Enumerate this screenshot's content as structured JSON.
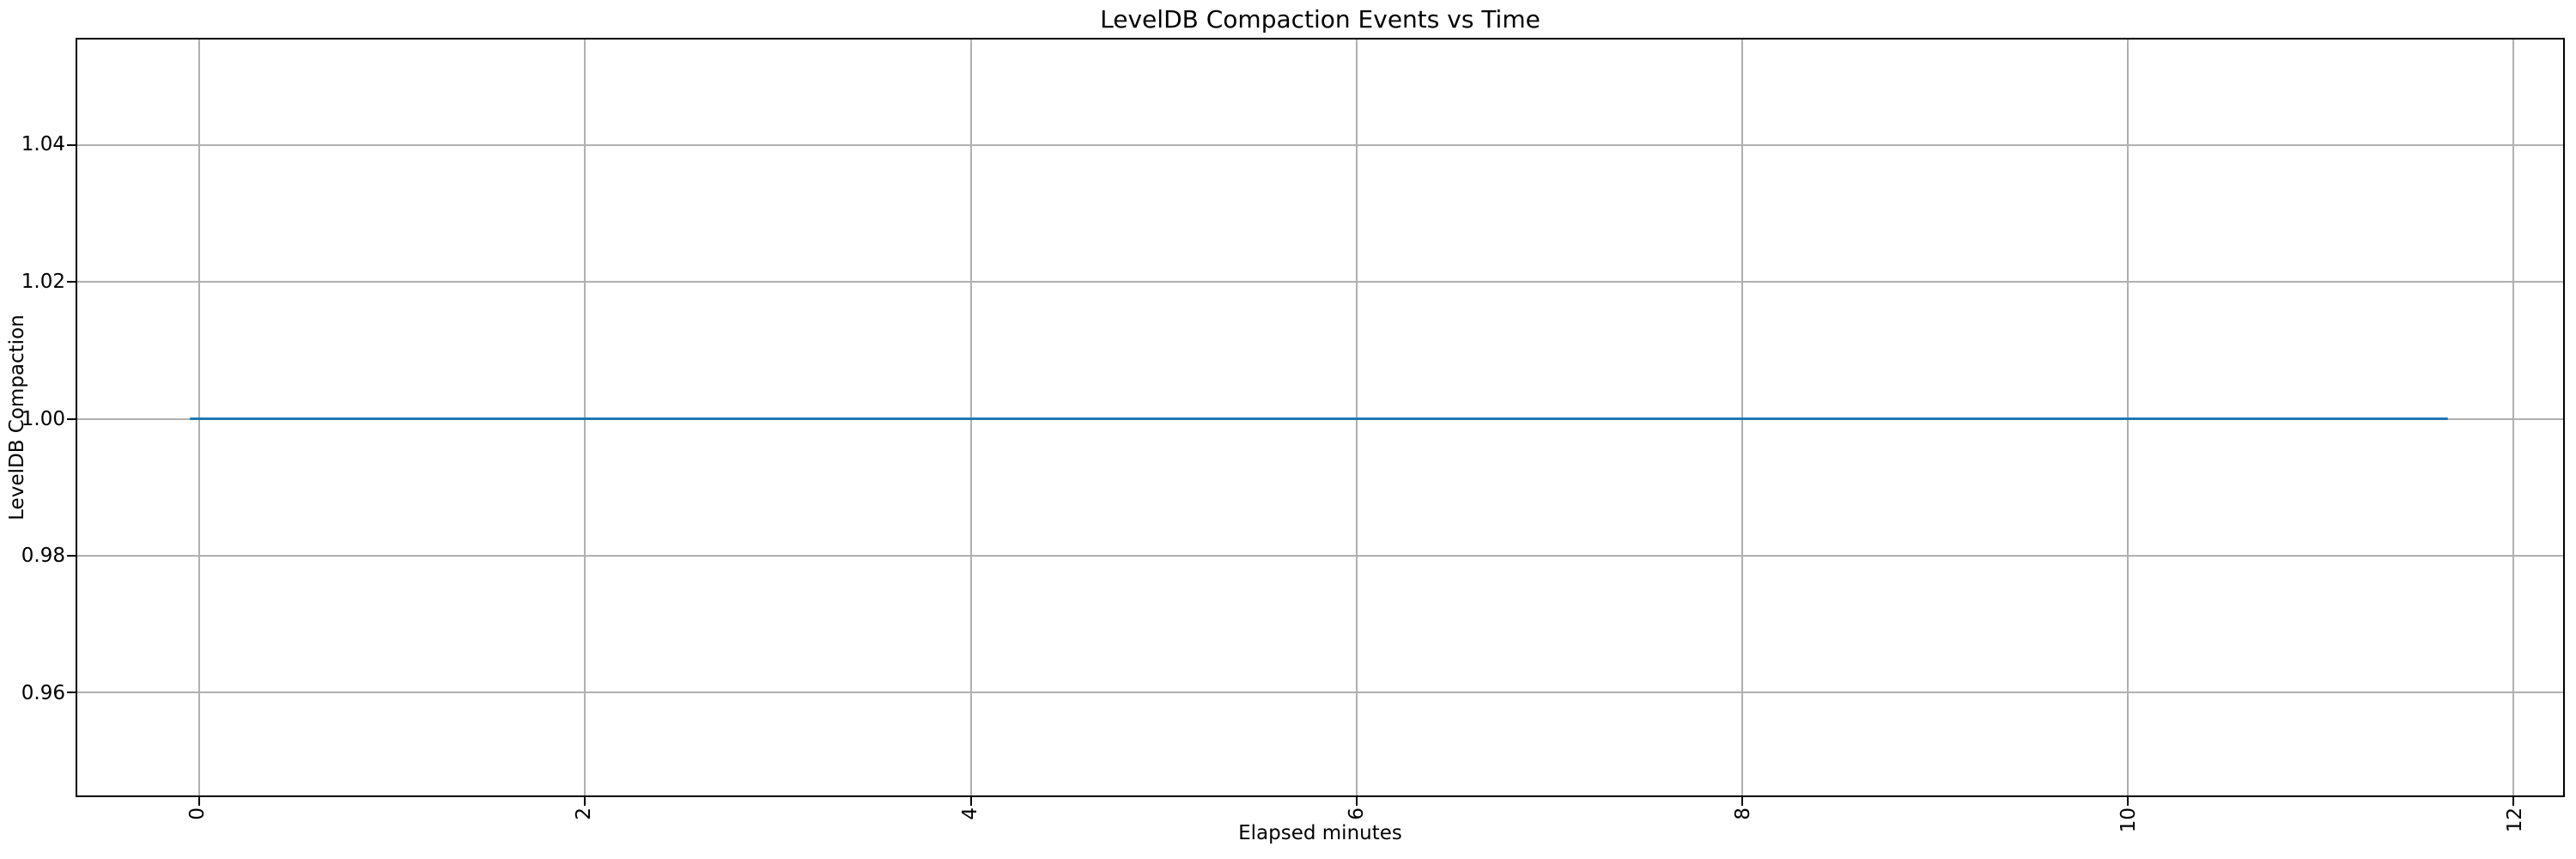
{
  "chart_data": {
    "type": "line",
    "title": "LevelDB Compaction Events vs Time",
    "xlabel": "Elapsed minutes",
    "ylabel": "LevelDB Compaction",
    "xlim": [
      -0.633,
      12.257
    ],
    "ylim": [
      0.9449,
      1.0555
    ],
    "xticks": [
      0,
      2,
      4,
      6,
      8,
      10,
      12
    ],
    "xtick_labels": [
      "0",
      "2",
      "4",
      "6",
      "8",
      "10",
      "12"
    ],
    "xtick_rotation": 90,
    "yticks": [
      0.96,
      0.98,
      1.0,
      1.02,
      1.04
    ],
    "ytick_labels": [
      "0.96",
      "0.98",
      "1.00",
      "1.02",
      "1.04"
    ],
    "grid": true,
    "legend": null,
    "series": [
      {
        "name": "LevelDB Compaction",
        "color": "#1f77b4",
        "x": [
          -0.05,
          11.66
        ],
        "y": [
          1.0,
          1.0
        ]
      }
    ],
    "colors": {
      "line": "#1f77b4",
      "grid": "#b0b0b0",
      "spine": "#000000",
      "text": "#000000",
      "background": "#ffffff"
    }
  }
}
